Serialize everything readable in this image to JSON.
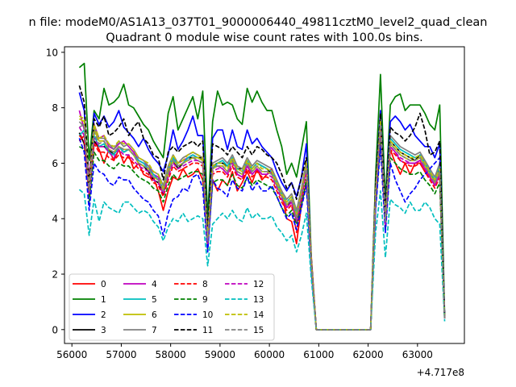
{
  "chart_data": {
    "type": "line",
    "suptitle": "n file: modeM0/AS1A13_037T01_9000006440_49811cztM0_level2_quad_clean",
    "title": "Quadrant 0 module wise count rates with 100.0s bins.",
    "xlabel": "",
    "ylabel": "",
    "offset_label": "+4.717e8",
    "xlim": [
      55850,
      63950
    ],
    "ylim": [
      -0.5,
      10.2
    ],
    "xticks": [
      56000,
      57000,
      58000,
      59000,
      60000,
      61000,
      62000,
      63000
    ],
    "yticks": [
      0,
      2,
      4,
      6,
      8,
      10
    ],
    "legend": {
      "position": "lower-left",
      "columns": 4
    },
    "x": [
      56150,
      56250,
      56350,
      56450,
      56550,
      56650,
      56750,
      56850,
      56950,
      57050,
      57150,
      57250,
      57350,
      57450,
      57550,
      57650,
      57750,
      57850,
      57950,
      58050,
      58150,
      58250,
      58350,
      58450,
      58550,
      58650,
      58750,
      58850,
      58950,
      59050,
      59150,
      59250,
      59350,
      59450,
      59550,
      59650,
      59750,
      59850,
      59950,
      60050,
      60150,
      60250,
      60350,
      60450,
      60550,
      60650,
      60750,
      60850,
      60950,
      62050,
      62150,
      62250,
      62350,
      62450,
      62550,
      62650,
      62750,
      62850,
      62950,
      63050,
      63150,
      63250,
      63350,
      63450,
      63550
    ],
    "series": [
      {
        "name": "0",
        "color": "#ff0000",
        "dash": "solid",
        "values": [
          6.8,
          7.0,
          5.2,
          6.8,
          6.5,
          6.0,
          6.5,
          6.1,
          6.5,
          6.0,
          6.3,
          5.8,
          6.0,
          5.6,
          5.5,
          5.5,
          5.0,
          4.3,
          5.0,
          5.5,
          5.4,
          5.8,
          5.5,
          5.6,
          5.8,
          5.4,
          3.2,
          5.4,
          5.0,
          5.4,
          5.2,
          5.7,
          5.0,
          5.3,
          5.7,
          5.3,
          5.8,
          5.4,
          5.6,
          5.8,
          5.3,
          5.0,
          4.0,
          3.9,
          3.1,
          4.5,
          5.3,
          2.6,
          0.0,
          0.0,
          5.0,
          7.3,
          4.1,
          6.5,
          6.0,
          5.6,
          6.0,
          5.6,
          6.0,
          6.0,
          5.7,
          5.5,
          5.2,
          5.6,
          0.4
        ]
      },
      {
        "name": "1",
        "color": "#008000",
        "dash": "solid",
        "values": [
          9.45,
          9.6,
          6.1,
          7.9,
          7.6,
          8.7,
          8.1,
          8.2,
          8.4,
          8.85,
          8.1,
          8.0,
          7.7,
          7.4,
          7.2,
          6.8,
          6.5,
          6.2,
          7.8,
          8.4,
          7.2,
          7.6,
          8.0,
          8.4,
          7.6,
          8.6,
          4.0,
          7.5,
          8.6,
          8.1,
          8.2,
          8.1,
          7.6,
          7.4,
          8.7,
          8.2,
          8.6,
          8.2,
          7.9,
          7.9,
          7.2,
          6.6,
          5.6,
          6.0,
          5.5,
          6.5,
          7.5,
          2.5,
          0.0,
          0.0,
          5.5,
          9.2,
          4.6,
          8.1,
          8.4,
          8.5,
          7.9,
          8.1,
          8.1,
          8.1,
          7.8,
          7.4,
          7.2,
          8.1,
          0.5
        ]
      },
      {
        "name": "2",
        "color": "#0000ff",
        "dash": "solid",
        "values": [
          8.55,
          7.9,
          4.8,
          7.8,
          7.4,
          7.7,
          7.3,
          7.5,
          7.9,
          7.3,
          7.1,
          6.9,
          6.6,
          6.9,
          6.5,
          6.2,
          6.0,
          5.7,
          6.3,
          7.2,
          6.5,
          6.8,
          7.2,
          7.7,
          7.0,
          7.0,
          3.4,
          6.9,
          7.2,
          7.2,
          6.5,
          7.2,
          6.6,
          6.5,
          7.2,
          6.7,
          6.9,
          6.6,
          6.4,
          6.2,
          5.7,
          5.3,
          5.0,
          5.3,
          4.8,
          5.5,
          6.7,
          2.3,
          0.0,
          0.0,
          5.0,
          7.9,
          4.2,
          7.5,
          7.7,
          7.5,
          7.2,
          7.4,
          7.0,
          6.8,
          6.6,
          6.6,
          6.2,
          6.7,
          0.4
        ]
      },
      {
        "name": "3",
        "color": "#000000",
        "dash": "solid",
        "values": [
          7.1,
          6.7,
          4.9,
          6.8,
          6.6,
          6.6,
          6.5,
          6.3,
          6.6,
          6.4,
          6.5,
          6.3,
          6.0,
          5.9,
          5.7,
          5.4,
          5.3,
          4.9,
          5.6,
          6.1,
          5.8,
          6.0,
          6.2,
          6.2,
          6.2,
          6.2,
          3.1,
          5.9,
          6.0,
          6.0,
          5.9,
          6.1,
          5.8,
          5.8,
          6.0,
          5.8,
          6.0,
          5.9,
          5.8,
          5.6,
          5.2,
          4.8,
          4.5,
          4.6,
          4.2,
          4.9,
          5.9,
          2.3,
          0.0,
          0.0,
          4.8,
          7.6,
          4.0,
          6.8,
          6.6,
          6.4,
          6.3,
          6.2,
          6.1,
          6.3,
          6.0,
          5.7,
          5.3,
          5.9,
          0.4
        ]
      },
      {
        "name": "4",
        "color": "#bf00bf",
        "dash": "solid",
        "values": [
          7.9,
          7.2,
          5.5,
          7.4,
          6.9,
          7.0,
          6.6,
          6.5,
          6.7,
          6.8,
          6.6,
          6.4,
          6.1,
          6.0,
          5.9,
          5.6,
          5.5,
          5.0,
          5.7,
          6.2,
          6.0,
          6.1,
          6.2,
          6.3,
          6.2,
          6.1,
          3.3,
          5.9,
          5.9,
          5.8,
          5.6,
          6.2,
          5.6,
          5.5,
          5.9,
          5.6,
          5.8,
          5.6,
          5.6,
          5.7,
          5.3,
          4.9,
          4.4,
          4.6,
          3.9,
          4.8,
          5.8,
          2.4,
          0.0,
          0.0,
          4.7,
          7.3,
          3.8,
          6.6,
          6.4,
          6.1,
          6.0,
          6.0,
          6.0,
          6.1,
          5.8,
          5.5,
          5.2,
          5.6,
          0.4
        ]
      },
      {
        "name": "5",
        "color": "#00bfbf",
        "dash": "solid",
        "values": [
          7.0,
          7.2,
          5.0,
          7.0,
          6.6,
          6.7,
          6.4,
          6.3,
          6.6,
          6.4,
          6.5,
          6.3,
          6.1,
          6.0,
          5.8,
          5.6,
          5.4,
          5.1,
          5.8,
          6.2,
          5.9,
          6.0,
          6.2,
          6.3,
          6.2,
          6.1,
          3.4,
          5.8,
          6.0,
          6.1,
          5.9,
          6.2,
          5.8,
          5.7,
          6.1,
          5.8,
          6.0,
          5.9,
          5.8,
          5.7,
          5.3,
          4.9,
          4.6,
          4.8,
          4.2,
          5.0,
          6.0,
          2.4,
          0.0,
          0.0,
          4.9,
          7.5,
          4.0,
          6.9,
          6.7,
          6.5,
          6.4,
          6.3,
          6.2,
          6.3,
          6.0,
          5.7,
          5.4,
          5.9,
          0.4
        ]
      },
      {
        "name": "6",
        "color": "#bfbf00",
        "dash": "solid",
        "values": [
          7.6,
          7.5,
          5.0,
          7.2,
          6.8,
          6.8,
          6.5,
          6.4,
          6.6,
          6.5,
          6.5,
          6.3,
          6.0,
          5.9,
          5.8,
          5.5,
          5.4,
          5.0,
          5.6,
          6.1,
          5.9,
          6.0,
          6.1,
          6.2,
          6.2,
          6.1,
          3.2,
          5.8,
          5.9,
          5.9,
          5.7,
          6.1,
          5.7,
          5.6,
          6.0,
          5.7,
          5.9,
          5.7,
          5.7,
          5.6,
          5.2,
          4.8,
          4.5,
          4.7,
          4.0,
          4.9,
          5.9,
          2.4,
          0.0,
          0.0,
          4.8,
          7.4,
          3.9,
          6.7,
          6.5,
          6.3,
          6.2,
          6.1,
          6.1,
          6.2,
          5.9,
          5.6,
          5.3,
          5.7,
          0.4
        ]
      },
      {
        "name": "7",
        "color": "#808080",
        "dash": "solid",
        "values": [
          7.3,
          7.4,
          5.2,
          7.3,
          6.9,
          6.9,
          6.7,
          6.5,
          6.8,
          6.6,
          6.7,
          6.5,
          6.2,
          6.1,
          5.9,
          5.7,
          5.6,
          5.2,
          5.9,
          6.3,
          6.0,
          6.2,
          6.3,
          6.4,
          6.3,
          6.2,
          3.5,
          6.0,
          6.1,
          6.2,
          6.0,
          6.3,
          5.9,
          5.8,
          6.2,
          5.9,
          6.1,
          6.0,
          5.9,
          5.8,
          5.4,
          5.0,
          4.7,
          4.9,
          4.3,
          5.1,
          6.1,
          2.5,
          0.0,
          0.0,
          5.0,
          7.6,
          4.1,
          7.0,
          6.8,
          6.6,
          6.5,
          6.4,
          6.3,
          6.4,
          6.1,
          5.8,
          5.5,
          6.0,
          0.4
        ]
      },
      {
        "name": "8",
        "color": "#ff0000",
        "dash": "dashed",
        "values": [
          7.0,
          6.8,
          4.8,
          6.7,
          6.4,
          6.4,
          6.2,
          6.1,
          6.3,
          6.2,
          6.2,
          6.0,
          5.8,
          5.7,
          5.6,
          5.3,
          5.2,
          4.8,
          5.4,
          5.9,
          5.7,
          5.8,
          5.9,
          6.0,
          6.0,
          5.9,
          3.0,
          5.6,
          5.7,
          5.7,
          5.5,
          5.9,
          5.5,
          5.4,
          5.8,
          5.5,
          5.7,
          5.5,
          5.5,
          5.4,
          5.0,
          4.6,
          4.3,
          4.5,
          3.5,
          4.7,
          5.7,
          2.3,
          0.0,
          0.0,
          4.6,
          7.1,
          3.7,
          6.5,
          6.3,
          6.1,
          6.0,
          5.9,
          5.9,
          6.0,
          5.7,
          5.4,
          5.1,
          5.5,
          0.4
        ]
      },
      {
        "name": "9",
        "color": "#008000",
        "dash": "dashed",
        "values": [
          6.6,
          6.5,
          4.6,
          6.4,
          6.1,
          6.1,
          5.9,
          5.8,
          6.0,
          5.9,
          5.9,
          5.7,
          5.5,
          5.4,
          5.3,
          5.1,
          5.0,
          4.6,
          5.2,
          5.6,
          5.4,
          5.5,
          5.6,
          5.7,
          5.7,
          5.6,
          2.9,
          5.3,
          5.4,
          5.4,
          5.2,
          5.6,
          5.2,
          5.1,
          5.5,
          5.2,
          5.4,
          5.3,
          5.2,
          5.1,
          4.8,
          4.4,
          4.1,
          4.3,
          3.8,
          4.5,
          5.4,
          2.2,
          0.0,
          0.0,
          4.4,
          6.8,
          3.6,
          6.2,
          6.0,
          5.8,
          5.7,
          5.6,
          5.6,
          5.7,
          5.4,
          5.2,
          4.9,
          5.3,
          0.4
        ]
      },
      {
        "name": "10",
        "color": "#0000ff",
        "dash": "dashed",
        "values": [
          6.9,
          6.4,
          4.3,
          6.0,
          5.7,
          5.6,
          5.3,
          5.2,
          5.5,
          5.4,
          5.4,
          5.1,
          4.9,
          4.7,
          4.6,
          4.3,
          4.1,
          3.4,
          4.2,
          4.7,
          4.8,
          5.1,
          5.0,
          5.5,
          5.6,
          5.1,
          2.8,
          5.4,
          5.1,
          5.0,
          4.8,
          5.4,
          5.1,
          5.0,
          5.5,
          5.0,
          5.3,
          5.0,
          5.0,
          5.2,
          4.8,
          4.4,
          4.0,
          4.2,
          3.6,
          4.4,
          5.2,
          2.1,
          0.0,
          0.0,
          4.3,
          6.6,
          3.5,
          6.0,
          5.4,
          5.0,
          4.6,
          4.9,
          5.1,
          5.4,
          5.6,
          5.8,
          6.0,
          6.2,
          0.4
        ]
      },
      {
        "name": "11",
        "color": "#000000",
        "dash": "dashed",
        "values": [
          8.8,
          8.2,
          5.2,
          7.6,
          7.3,
          7.7,
          7.0,
          7.1,
          7.3,
          7.6,
          7.0,
          7.3,
          7.5,
          6.9,
          6.7,
          6.3,
          6.2,
          5.4,
          6.4,
          6.6,
          6.4,
          6.6,
          6.7,
          6.8,
          6.6,
          6.8,
          3.5,
          6.7,
          6.6,
          6.5,
          6.3,
          6.6,
          6.4,
          6.2,
          6.6,
          6.3,
          6.6,
          6.5,
          6.3,
          6.2,
          6.0,
          5.6,
          5.1,
          5.3,
          4.7,
          5.5,
          6.2,
          2.5,
          0.0,
          0.0,
          5.2,
          7.8,
          4.2,
          7.3,
          7.1,
          7.0,
          6.8,
          7.0,
          7.3,
          7.8,
          7.2,
          6.3,
          6.4,
          6.8,
          0.4
        ]
      },
      {
        "name": "12",
        "color": "#bf00bf",
        "dash": "dashed",
        "values": [
          7.3,
          7.0,
          4.9,
          6.9,
          6.6,
          6.6,
          6.4,
          6.2,
          6.5,
          6.3,
          6.3,
          6.1,
          5.9,
          5.8,
          5.7,
          5.4,
          5.3,
          4.9,
          5.5,
          6.0,
          5.8,
          5.9,
          6.0,
          6.1,
          6.1,
          6.0,
          3.1,
          5.7,
          5.8,
          5.8,
          5.6,
          6.0,
          5.6,
          5.5,
          5.9,
          5.6,
          5.8,
          5.6,
          5.6,
          5.5,
          5.1,
          4.7,
          4.4,
          4.6,
          3.9,
          4.8,
          5.8,
          2.3,
          0.0,
          0.0,
          4.7,
          7.2,
          3.8,
          6.6,
          6.4,
          6.2,
          6.1,
          6.0,
          6.0,
          6.1,
          5.8,
          5.5,
          5.2,
          5.6,
          0.4
        ]
      },
      {
        "name": "13",
        "color": "#00bfbf",
        "dash": "dashed",
        "values": [
          5.05,
          4.9,
          3.4,
          4.7,
          3.9,
          4.6,
          4.4,
          4.3,
          4.2,
          4.6,
          4.6,
          4.4,
          4.2,
          4.3,
          4.2,
          3.9,
          3.7,
          3.2,
          3.7,
          4.0,
          3.9,
          4.2,
          3.9,
          4.0,
          4.1,
          4.0,
          2.3,
          3.8,
          4.0,
          4.2,
          4.0,
          4.3,
          4.0,
          3.9,
          4.4,
          4.0,
          4.2,
          4.0,
          4.0,
          4.1,
          3.7,
          3.5,
          3.2,
          3.4,
          2.8,
          3.4,
          4.2,
          1.8,
          0.0,
          0.0,
          3.5,
          5.0,
          2.6,
          4.7,
          4.5,
          4.4,
          4.2,
          4.6,
          4.3,
          4.3,
          4.6,
          4.4,
          4.0,
          3.8,
          0.3
        ]
      },
      {
        "name": "14",
        "color": "#bfbf00",
        "dash": "dashed",
        "values": [
          7.7,
          7.6,
          5.1,
          7.4,
          6.9,
          7.0,
          6.7,
          6.6,
          6.8,
          6.7,
          6.7,
          6.5,
          6.2,
          6.1,
          6.0,
          5.7,
          5.6,
          5.1,
          5.8,
          6.3,
          6.0,
          6.1,
          6.3,
          6.4,
          6.3,
          6.2,
          3.3,
          5.9,
          6.0,
          6.0,
          5.8,
          6.2,
          5.8,
          5.7,
          6.1,
          5.8,
          6.0,
          5.8,
          5.8,
          5.7,
          5.3,
          4.9,
          4.6,
          4.8,
          4.1,
          5.0,
          6.0,
          2.4,
          0.0,
          0.0,
          4.9,
          7.5,
          4.0,
          6.8,
          6.6,
          6.4,
          6.3,
          6.2,
          6.2,
          6.3,
          6.0,
          5.7,
          5.4,
          5.8,
          0.4
        ]
      },
      {
        "name": "15",
        "color": "#808080",
        "dash": "dashed",
        "values": [
          7.5,
          7.3,
          5.0,
          7.1,
          6.7,
          6.8,
          6.5,
          6.4,
          6.6,
          6.5,
          6.5,
          6.3,
          6.0,
          5.9,
          5.8,
          5.5,
          5.4,
          5.0,
          5.7,
          6.1,
          5.9,
          6.0,
          6.1,
          6.2,
          6.1,
          6.0,
          3.2,
          5.8,
          5.9,
          5.9,
          5.7,
          6.1,
          5.7,
          5.6,
          6.0,
          5.7,
          5.9,
          5.7,
          5.7,
          5.6,
          5.2,
          4.8,
          4.5,
          4.7,
          4.0,
          4.9,
          5.9,
          2.4,
          0.0,
          0.0,
          4.8,
          7.4,
          3.9,
          6.7,
          6.5,
          6.3,
          6.2,
          6.1,
          6.1,
          6.2,
          5.9,
          5.6,
          5.3,
          5.7,
          0.4
        ]
      }
    ]
  }
}
